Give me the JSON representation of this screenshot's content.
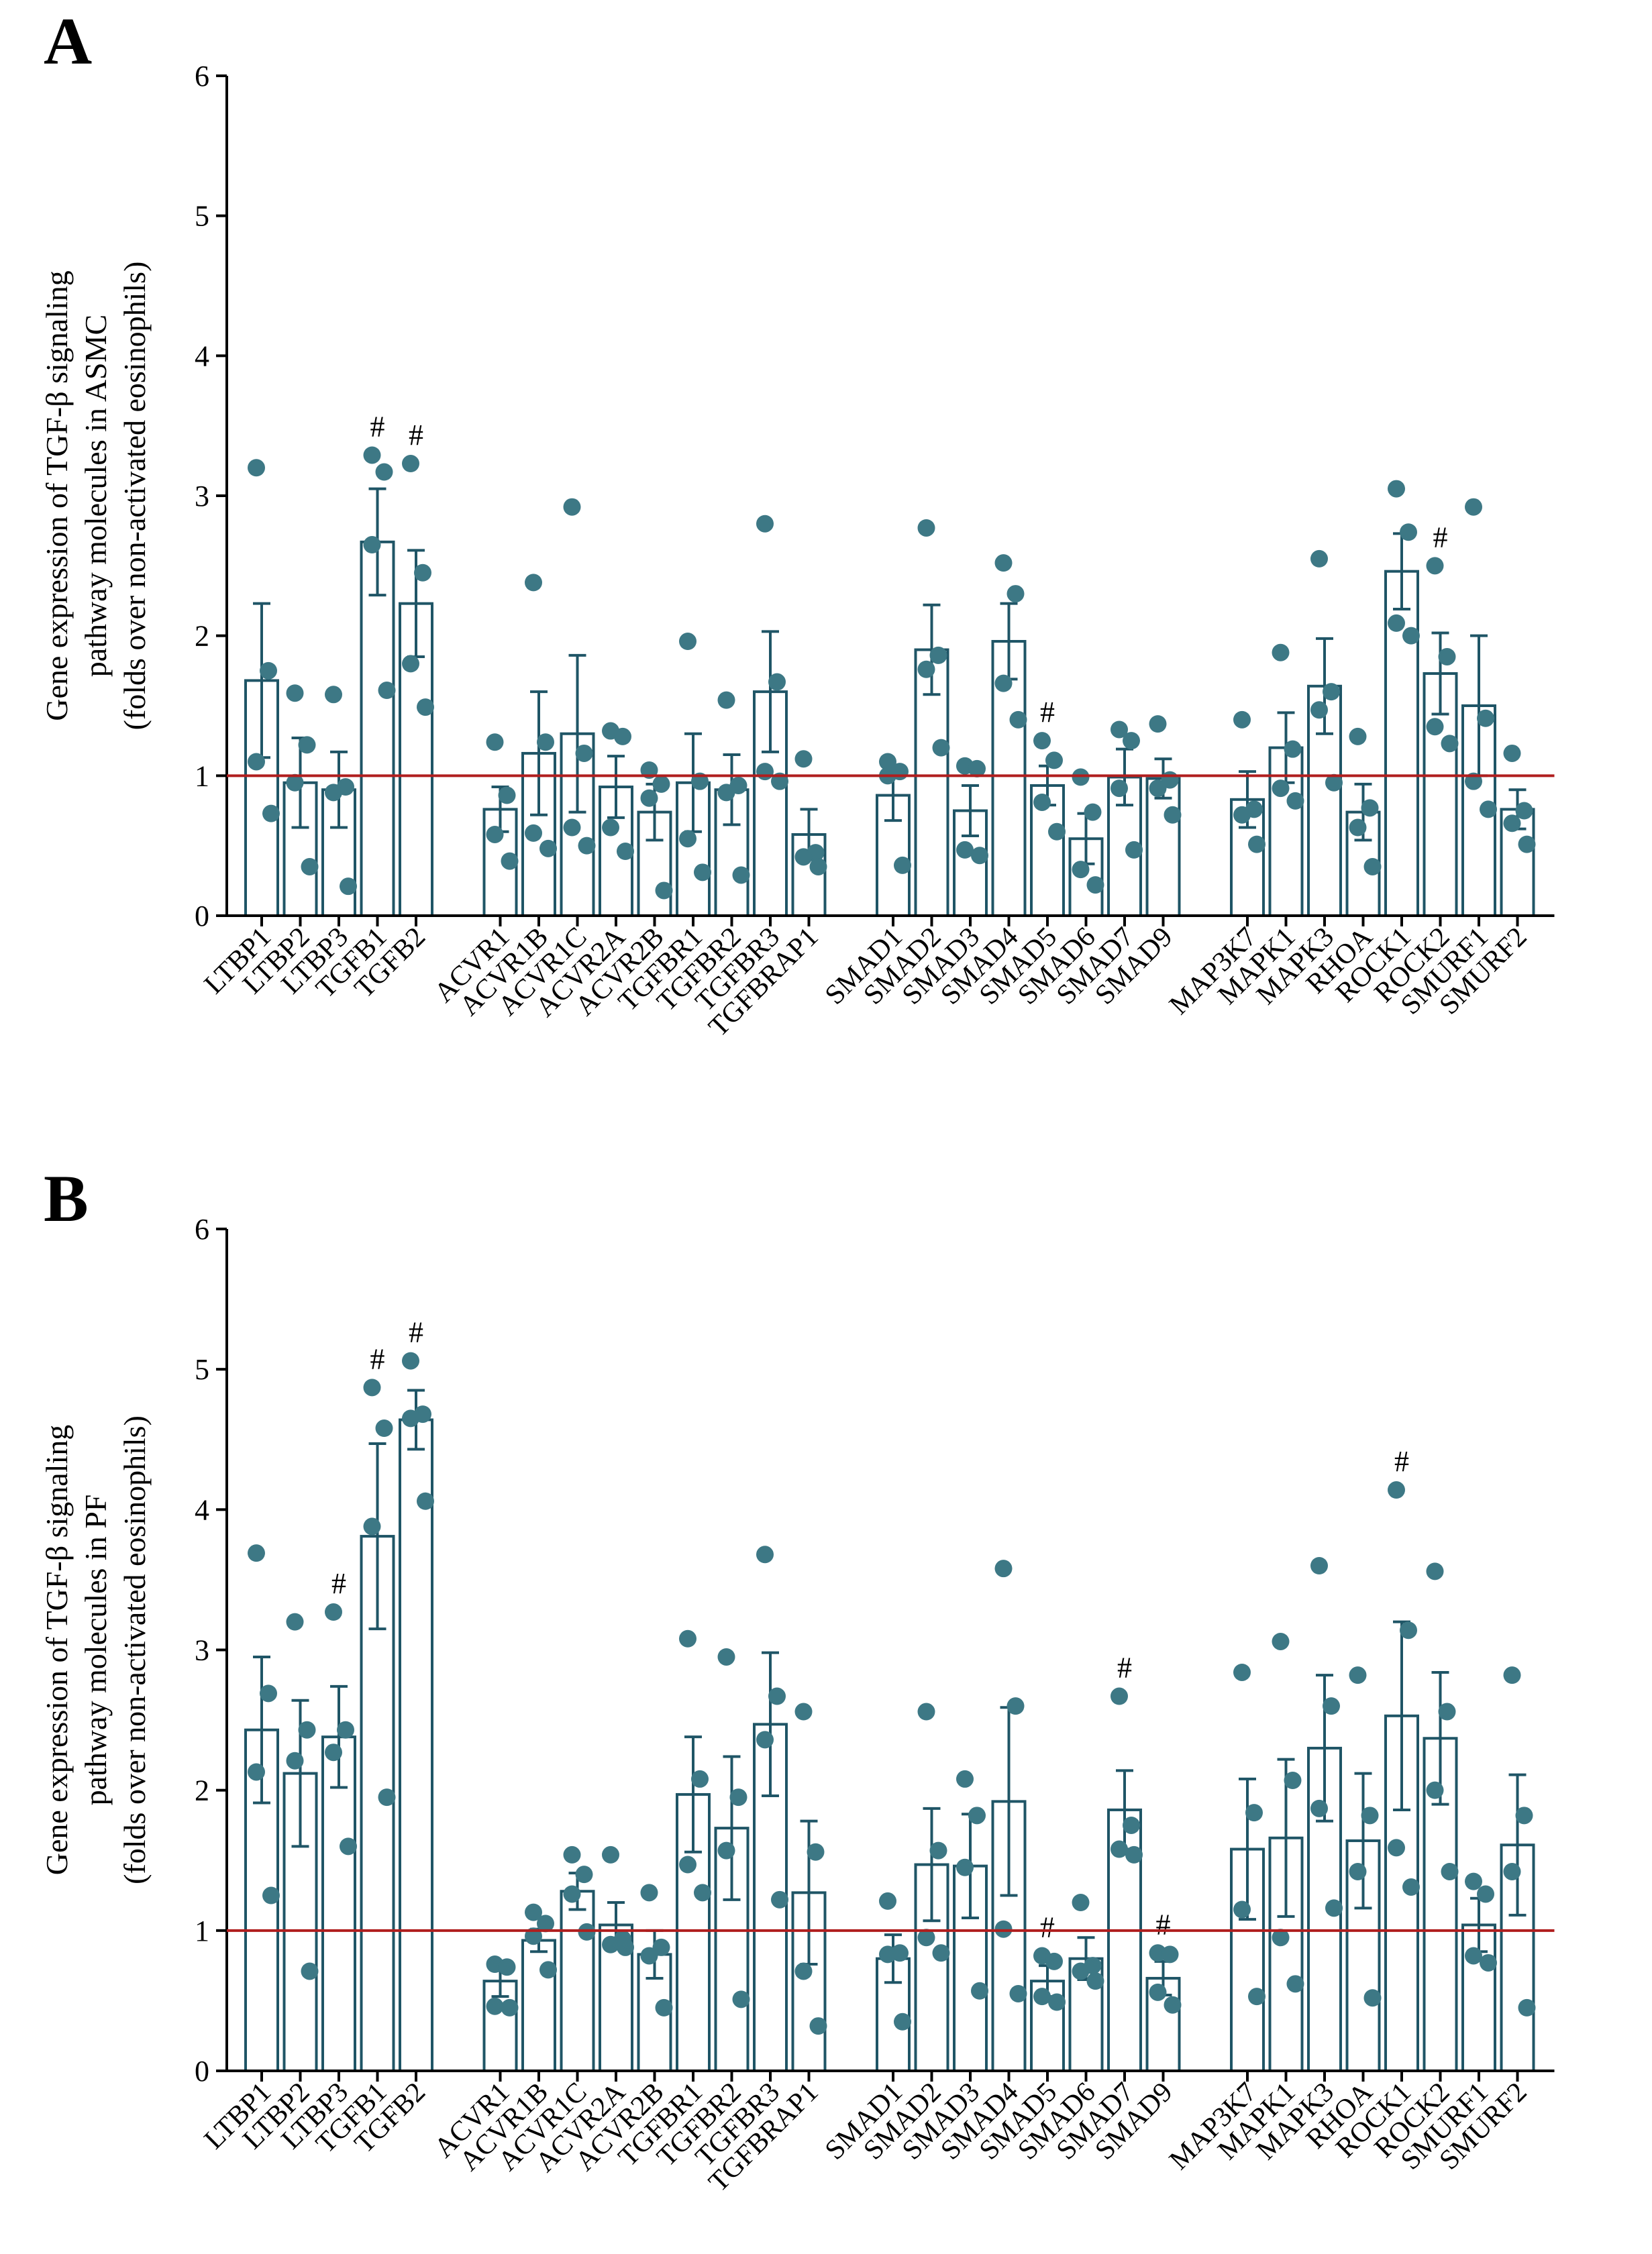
{
  "colors": {
    "bar": "#1f5566",
    "dot": "#3d7885",
    "ref_line": "#b01e1e",
    "axis": "#000000"
  },
  "chart_data": [
    {
      "type": "bar",
      "panel_label": "A",
      "ylabel_lines": [
        "Gene expression of TGF-β signaling",
        "pathway molecules in ASMC",
        "(folds over non-activated eosinophils)"
      ],
      "ylim": [
        0,
        6
      ],
      "yticks": [
        "0",
        "1",
        "2",
        "3",
        "4",
        "5",
        "6"
      ],
      "reference_line": 1,
      "significance_marker": "#",
      "groups": [
        {
          "categories": [
            "LTBP1",
            "LTBP2",
            "LTBP3",
            "TGFB1",
            "TGFB2"
          ],
          "means": [
            1.68,
            0.95,
            0.9,
            2.67,
            2.23
          ],
          "errors": [
            0.55,
            0.32,
            0.27,
            0.38,
            0.38
          ],
          "points": [
            [
              3.2,
              1.75,
              1.1,
              0.73
            ],
            [
              1.59,
              1.22,
              0.95,
              0.35
            ],
            [
              1.58,
              0.92,
              0.88,
              0.21
            ],
            [
              3.29,
              3.17,
              2.65,
              1.61
            ],
            [
              3.23,
              2.45,
              1.8,
              1.49
            ]
          ],
          "significant": [
            false,
            false,
            false,
            true,
            true
          ]
        },
        {
          "categories": [
            "ACVR1",
            "ACVR1B",
            "ACVR1C",
            "ACVR2A",
            "ACVR2B",
            "TGFBR1",
            "TGFBR2",
            "TGFBR3",
            "TGFBRAP1"
          ],
          "means": [
            0.76,
            1.16,
            1.3,
            0.92,
            0.74,
            0.95,
            0.9,
            1.6,
            0.58
          ],
          "errors": [
            0.16,
            0.44,
            0.56,
            0.22,
            0.2,
            0.35,
            0.25,
            0.43,
            0.18
          ],
          "points": [
            [
              1.24,
              0.86,
              0.58,
              0.39
            ],
            [
              2.38,
              1.24,
              0.59,
              0.48
            ],
            [
              2.92,
              1.16,
              0.63,
              0.5
            ],
            [
              1.32,
              1.28,
              0.63,
              0.46
            ],
            [
              1.04,
              0.94,
              0.84,
              0.18
            ],
            [
              1.96,
              0.96,
              0.55,
              0.31
            ],
            [
              1.54,
              0.93,
              0.88,
              0.29
            ],
            [
              2.8,
              1.67,
              1.03,
              0.96
            ],
            [
              1.12,
              0.45,
              0.42,
              0.35
            ]
          ],
          "significant": [
            false,
            false,
            false,
            false,
            false,
            false,
            false,
            false,
            false
          ]
        },
        {
          "categories": [
            "SMAD1",
            "SMAD2",
            "SMAD3",
            "SMAD4",
            "SMAD5",
            "SMAD6",
            "SMAD7",
            "SMAD9"
          ],
          "means": [
            0.86,
            1.9,
            0.75,
            1.96,
            0.93,
            0.55,
            0.99,
            0.98
          ],
          "errors": [
            0.18,
            0.32,
            0.18,
            0.27,
            0.14,
            0.18,
            0.2,
            0.14
          ],
          "points": [
            [
              1.1,
              1.03,
              1.0,
              0.36
            ],
            [
              2.77,
              1.86,
              1.76,
              1.2
            ],
            [
              1.07,
              1.05,
              0.47,
              0.43
            ],
            [
              2.52,
              2.3,
              1.66,
              1.4
            ],
            [
              1.25,
              1.11,
              0.81,
              0.6
            ],
            [
              0.99,
              0.74,
              0.33,
              0.22
            ],
            [
              1.33,
              1.25,
              0.91,
              0.47
            ],
            [
              1.37,
              0.97,
              0.91,
              0.72
            ]
          ],
          "significant": [
            false,
            false,
            false,
            false,
            true,
            false,
            false,
            false
          ]
        },
        {
          "categories": [
            "MAP3K7",
            "MAPK1",
            "MAPK3",
            "RHOA",
            "ROCK1",
            "ROCK2",
            "SMURF1",
            "SMURF2"
          ],
          "means": [
            0.83,
            1.2,
            1.64,
            0.74,
            2.46,
            1.73,
            1.5,
            0.76
          ],
          "errors": [
            0.2,
            0.25,
            0.34,
            0.2,
            0.27,
            0.29,
            0.5,
            0.14
          ],
          "points": [
            [
              1.4,
              0.76,
              0.72,
              0.51
            ],
            [
              1.88,
              1.19,
              0.91,
              0.82
            ],
            [
              2.55,
              1.6,
              1.47,
              0.95
            ],
            [
              1.28,
              0.77,
              0.63,
              0.35
            ],
            [
              3.05,
              2.74,
              2.09,
              2.0
            ],
            [
              2.5,
              1.85,
              1.35,
              1.23
            ],
            [
              2.92,
              1.41,
              0.96,
              0.76
            ],
            [
              1.16,
              0.75,
              0.66,
              0.51
            ]
          ],
          "significant": [
            false,
            false,
            false,
            false,
            false,
            true,
            false,
            false
          ]
        }
      ]
    },
    {
      "type": "bar",
      "panel_label": "B",
      "ylabel_lines": [
        "Gene expression of TGF-β signaling",
        "pathway molecules in PF",
        "(folds over non-activated eosinophils)"
      ],
      "ylim": [
        0,
        6
      ],
      "yticks": [
        "0",
        "1",
        "2",
        "3",
        "4",
        "5",
        "6"
      ],
      "reference_line": 1,
      "significance_marker": "#",
      "groups": [
        {
          "categories": [
            "LTBP1",
            "LTBP2",
            "LTBP3",
            "TGFB1",
            "TGFB2"
          ],
          "means": [
            2.43,
            2.12,
            2.38,
            3.81,
            4.64
          ],
          "errors": [
            0.52,
            0.52,
            0.36,
            0.66,
            0.21
          ],
          "points": [
            [
              3.69,
              2.69,
              2.13,
              1.25
            ],
            [
              3.2,
              2.43,
              2.21,
              0.71
            ],
            [
              3.27,
              2.43,
              2.27,
              1.6
            ],
            [
              4.87,
              4.58,
              3.88,
              1.95
            ],
            [
              5.06,
              4.68,
              4.65,
              4.06
            ]
          ],
          "significant": [
            false,
            false,
            true,
            true,
            true
          ]
        },
        {
          "categories": [
            "ACVR1",
            "ACVR1B",
            "ACVR1C",
            "ACVR2A",
            "ACVR2B",
            "TGFBR1",
            "TGFBR2",
            "TGFBR3",
            "TGFBRAP1"
          ],
          "means": [
            0.64,
            0.93,
            1.28,
            1.04,
            0.83,
            1.97,
            1.73,
            2.47,
            1.27
          ],
          "errors": [
            0.11,
            0.08,
            0.13,
            0.16,
            0.17,
            0.41,
            0.51,
            0.51,
            0.51
          ],
          "points": [
            [
              0.76,
              0.74,
              0.46,
              0.45
            ],
            [
              1.13,
              1.05,
              0.96,
              0.72
            ],
            [
              1.54,
              1.4,
              1.26,
              0.99
            ],
            [
              1.54,
              0.94,
              0.9,
              0.88
            ],
            [
              1.27,
              0.88,
              0.82,
              0.45
            ],
            [
              3.08,
              2.08,
              1.47,
              1.27
            ],
            [
              2.95,
              1.95,
              1.57,
              0.51
            ],
            [
              3.68,
              2.67,
              2.36,
              1.22
            ],
            [
              2.56,
              1.56,
              0.71,
              0.32
            ]
          ],
          "significant": [
            false,
            false,
            false,
            false,
            false,
            false,
            false,
            false,
            false
          ]
        },
        {
          "categories": [
            "SMAD1",
            "SMAD2",
            "SMAD3",
            "SMAD4",
            "SMAD5",
            "SMAD6",
            "SMAD7",
            "SMAD9"
          ],
          "means": [
            0.8,
            1.47,
            1.46,
            1.92,
            0.64,
            0.8,
            1.86,
            0.66
          ],
          "errors": [
            0.17,
            0.4,
            0.37,
            0.67,
            0.11,
            0.15,
            0.28,
            0.12
          ],
          "points": [
            [
              1.21,
              0.84,
              0.83,
              0.35
            ],
            [
              2.56,
              1.57,
              0.95,
              0.84
            ],
            [
              2.08,
              1.82,
              1.45,
              0.57
            ],
            [
              3.58,
              2.6,
              1.01,
              0.55
            ],
            [
              0.82,
              0.78,
              0.53,
              0.49
            ],
            [
              1.2,
              0.75,
              0.71,
              0.64
            ],
            [
              2.67,
              1.75,
              1.58,
              1.54
            ],
            [
              0.84,
              0.83,
              0.56,
              0.47
            ]
          ],
          "significant": [
            false,
            false,
            false,
            false,
            true,
            false,
            true,
            true
          ]
        },
        {
          "categories": [
            "MAP3K7",
            "MAPK1",
            "MAPK3",
            "RHOA",
            "ROCK1",
            "ROCK2",
            "SMURF1",
            "SMURF2"
          ],
          "means": [
            1.58,
            1.66,
            2.3,
            1.64,
            2.53,
            2.37,
            1.04,
            1.61
          ],
          "errors": [
            0.5,
            0.56,
            0.52,
            0.48,
            0.67,
            0.47,
            0.19,
            0.5
          ],
          "points": [
            [
              2.84,
              1.84,
              1.15,
              0.53
            ],
            [
              3.06,
              2.07,
              0.95,
              0.62
            ],
            [
              3.6,
              2.6,
              1.87,
              1.16
            ],
            [
              2.82,
              1.82,
              1.42,
              0.52
            ],
            [
              4.14,
              3.14,
              1.59,
              1.31
            ],
            [
              3.56,
              2.56,
              2.0,
              1.42
            ],
            [
              1.35,
              1.26,
              0.82,
              0.77
            ],
            [
              2.82,
              1.82,
              1.42,
              0.45
            ]
          ],
          "significant": [
            false,
            false,
            false,
            false,
            true,
            false,
            false,
            false
          ]
        }
      ]
    }
  ]
}
